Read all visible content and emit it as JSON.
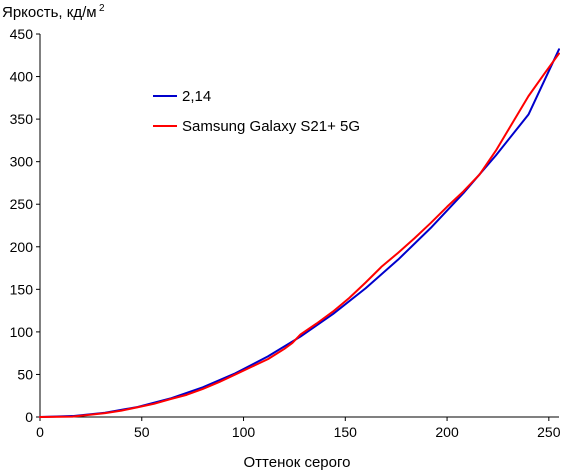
{
  "chart_data": {
    "type": "line",
    "title": "",
    "xlabel": "Оттенок серого",
    "ylabel": "Яркость, кд/м",
    "ylabel_sup": "2",
    "xlim": [
      0,
      255
    ],
    "ylim": [
      0,
      450
    ],
    "xticks": [
      0,
      50,
      100,
      150,
      200,
      250
    ],
    "yticks": [
      0,
      50,
      100,
      150,
      200,
      250,
      300,
      350,
      400,
      450
    ],
    "grid": false,
    "legend_position": "upper-left",
    "series": [
      {
        "name": "2,14",
        "color": "#0000cc",
        "gamma": 2.14,
        "x": [
          0,
          16,
          32,
          48,
          64,
          80,
          96,
          112,
          128,
          144,
          160,
          176,
          192,
          208,
          224,
          240,
          255
        ],
        "y": [
          0,
          1.1,
          5.0,
          11.8,
          21.7,
          34.9,
          51.4,
          71.2,
          94.5,
          121.1,
          151.3,
          185.0,
          222.2,
          263.0,
          307.4,
          355.4,
          432
        ]
      },
      {
        "name": "Samsung Galaxy S21+ 5G",
        "color": "#ff0000",
        "x": [
          0,
          16,
          24,
          32,
          40,
          48,
          56,
          64,
          72,
          80,
          88,
          96,
          104,
          112,
          120,
          124,
          128,
          136,
          144,
          152,
          160,
          168,
          176,
          184,
          192,
          200,
          208,
          216,
          224,
          232,
          240,
          248,
          255
        ],
        "y": [
          0,
          0.5,
          2.5,
          4.5,
          7.5,
          11.5,
          15.5,
          21,
          26,
          33,
          41,
          50,
          59,
          68,
          80,
          87,
          97,
          110,
          124,
          140,
          158,
          177,
          193,
          210,
          228,
          247,
          265,
          285,
          313,
          345,
          377,
          404,
          427
        ]
      }
    ]
  }
}
